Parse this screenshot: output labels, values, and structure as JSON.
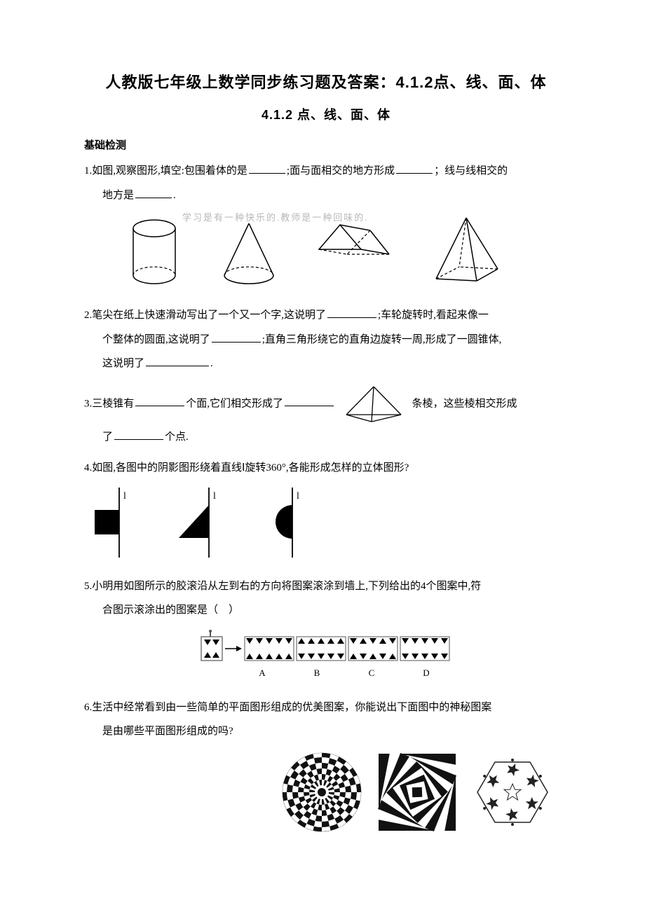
{
  "title": "人教版七年级上数学同步练习题及答案：4.1.2点、线、面、体",
  "subtitle": "4.1.2  点、线、面、体",
  "section": "基础检测",
  "q1": {
    "a": "1.如图,观察图形,填空:包围着体的是",
    "b": ";面与面相交的地方形成",
    "c": "；线与线相交的",
    "d": "地方是",
    "e": "."
  },
  "q2": {
    "a": "2.笔尖在纸上快速滑动写出了一个又一个字,这说明了",
    "b": ";车轮旋转时,看起来像一",
    "c": "个整体的圆面,这说明了",
    "d": ";直角三角形绕它的直角边旋转一周,形成了一圆锥体,",
    "e": "这说明了",
    "f": "."
  },
  "q3": {
    "a": "3.三棱锥有",
    "b": "个面,它们相交形成了",
    "c": "条棱，这些棱相交形成",
    "d": "了",
    "e": "个点."
  },
  "q4": "4.如图,各图中的阴影图形绕着直线Ⅰ旋转360°,各能形成怎样的立体图形?",
  "q5": {
    "a": "5.小明用如图所示的胶滚沿从左到右的方向将图案滚涂到墙上,下列给出的4个图案中,符",
    "b": "合图示滚涂出的图案是（　）"
  },
  "q6": {
    "a": "6.生活中经常看到由一些简单的平面图形组成的优美图案，你能说出下面图中的神秘图案",
    "b": "是由哪些平面图形组成的吗?"
  },
  "options": [
    "A",
    "B",
    "C",
    "D"
  ],
  "rot_label": "l",
  "watermark": "学习是有一种快乐的.教师是一种回味的."
}
